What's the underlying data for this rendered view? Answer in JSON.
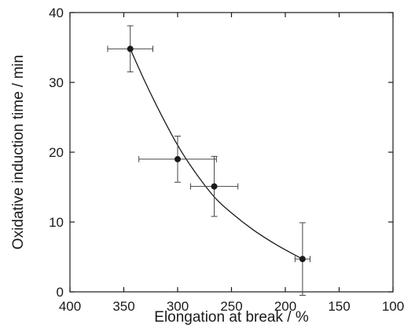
{
  "chart_data": {
    "type": "scatter",
    "xlabel": "Elongation at break / %",
    "ylabel": "Oxidative induction time / min",
    "xlim": [
      400,
      100
    ],
    "ylim": [
      0,
      40
    ],
    "x_reversed": true,
    "xticks": [
      400,
      350,
      300,
      250,
      200,
      150,
      100
    ],
    "yticks": [
      0,
      10,
      20,
      30,
      40
    ],
    "grid": false,
    "legend": "none",
    "points": [
      {
        "x": 344,
        "y": 34.8,
        "x_err": 21,
        "y_err": 3.3
      },
      {
        "x": 300,
        "y": 19.0,
        "x_err": 36,
        "y_err": 3.3
      },
      {
        "x": 266,
        "y": 15.1,
        "x_err": 22,
        "y_err": 4.3
      },
      {
        "x": 184,
        "y": 4.7,
        "x_err": 7,
        "y_err": 5.2
      }
    ],
    "fit_curve": {
      "type": "exponential",
      "points": [
        [
          344,
          34.8
        ],
        [
          330,
          30.0
        ],
        [
          315,
          25.3
        ],
        [
          300,
          21.0
        ],
        [
          285,
          17.4
        ],
        [
          266,
          13.6
        ],
        [
          250,
          11.3
        ],
        [
          230,
          8.9
        ],
        [
          210,
          6.9
        ],
        [
          195,
          5.6
        ],
        [
          184,
          4.7
        ]
      ]
    },
    "colors": {
      "axis": "#1a1a1a",
      "marker": "#1a1a1a",
      "curve": "#1a1a1a",
      "errorbar": "#444444"
    }
  }
}
